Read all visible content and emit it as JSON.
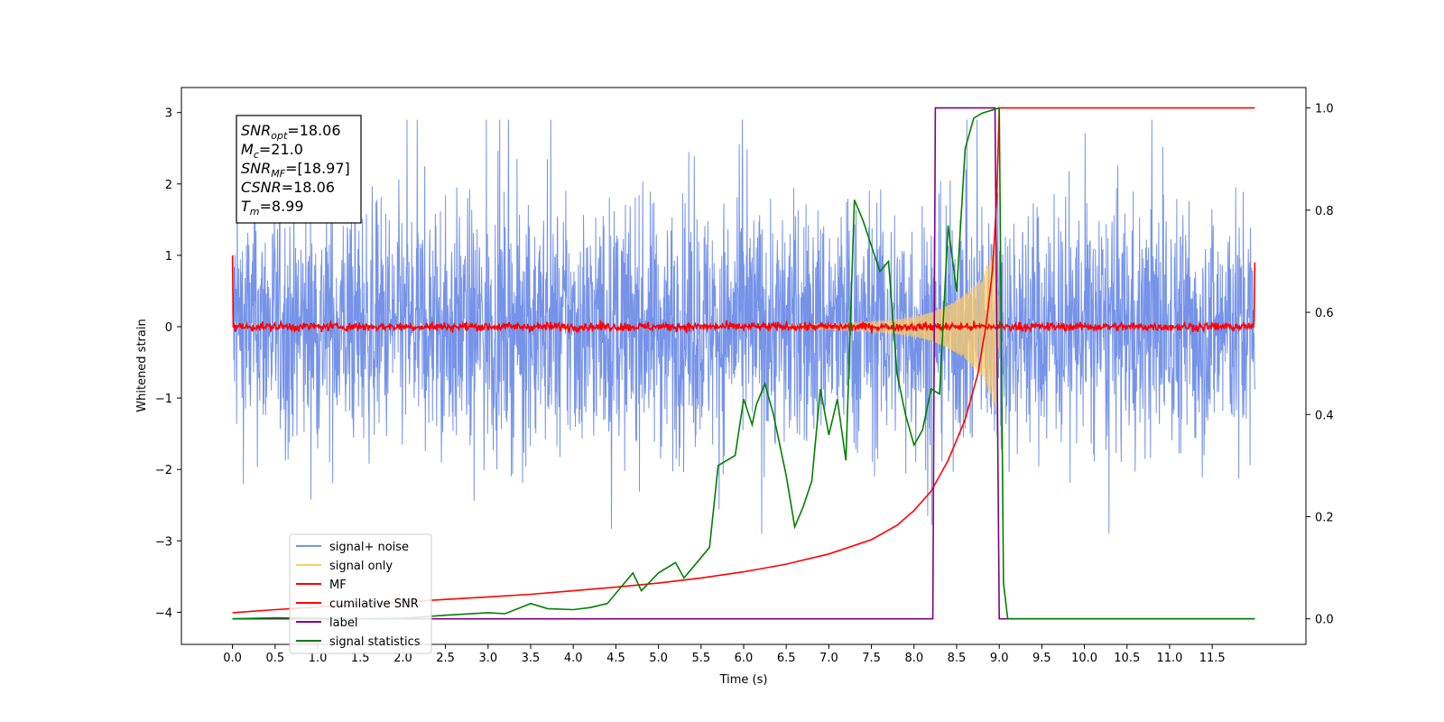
{
  "chart_data": {
    "type": "line",
    "title": "",
    "xlabel": "Time (s)",
    "ylabel": "Whitened strain",
    "xlim": [
      -0.6,
      12.6
    ],
    "ylim": [
      -4.45,
      3.35
    ],
    "y2lim": [
      -0.05,
      1.04
    ],
    "x_ticks": [
      "0.0",
      "0.5",
      "1.0",
      "1.5",
      "2.0",
      "2.5",
      "3.0",
      "3.5",
      "4.0",
      "4.5",
      "5.0",
      "5.5",
      "6.0",
      "6.5",
      "7.0",
      "7.5",
      "8.0",
      "8.5",
      "9.0",
      "9.5",
      "10.0",
      "10.5",
      "11.0",
      "11.5"
    ],
    "y_ticks": [
      "3",
      "2",
      "1",
      "0",
      "−1",
      "−2",
      "−3",
      "−4"
    ],
    "y2_ticks": [
      "1.0",
      "0.8",
      "0.6",
      "0.4",
      "0.2",
      "0.0"
    ],
    "legend_position": "lower-left",
    "grid": false,
    "annotation": {
      "lines": [
        {
          "sym": "SNR",
          "sub": "opt",
          "val": "=18.06"
        },
        {
          "sym": "M",
          "sub": "c",
          "val": "=21.0"
        },
        {
          "sym": "SNR",
          "sub": "MF",
          "val": "=[18.97]"
        },
        {
          "sym": "CSNR",
          "sub": "",
          "val": "=18.06"
        },
        {
          "sym": "T",
          "sub": "m",
          "val": "=8.99"
        }
      ]
    },
    "series": [
      {
        "name": "signal+ noise",
        "axis": "left",
        "color": "#4169e1",
        "opacity": 0.72,
        "description": "whitened noise band, roughly ±1.4 with peaks to about ±2.9",
        "approx_range": [
          -2.9,
          2.9
        ],
        "x_range": [
          0.0,
          12.0
        ]
      },
      {
        "name": "signal only",
        "axis": "left",
        "color": "#ffcc66",
        "envelope": [
          [
            6.5,
            0.02
          ],
          [
            7.0,
            0.04
          ],
          [
            7.5,
            0.07
          ],
          [
            7.8,
            0.1
          ],
          [
            8.0,
            0.14
          ],
          [
            8.2,
            0.2
          ],
          [
            8.4,
            0.3
          ],
          [
            8.6,
            0.45
          ],
          [
            8.8,
            0.7
          ],
          [
            8.9,
            1.0
          ],
          [
            8.97,
            1.25
          ],
          [
            9.0,
            0.0
          ]
        ]
      },
      {
        "name": "MF",
        "axis": "left",
        "color": "#ff0000",
        "description": "matched-filter output fluctuating near 0, spikes to 1.0 at t=0 and 0.9 at t=12",
        "approx_range": [
          -0.1,
          0.1
        ],
        "x_range": [
          0.0,
          12.0
        ]
      },
      {
        "name": "cumilative SNR",
        "axis": "right",
        "color": "#ff0000",
        "points": [
          [
            0.0,
            0.012
          ],
          [
            0.5,
            0.018
          ],
          [
            1.0,
            0.023
          ],
          [
            1.5,
            0.028
          ],
          [
            2.0,
            0.033
          ],
          [
            2.5,
            0.038
          ],
          [
            3.0,
            0.043
          ],
          [
            3.5,
            0.048
          ],
          [
            4.0,
            0.055
          ],
          [
            4.5,
            0.062
          ],
          [
            5.0,
            0.07
          ],
          [
            5.5,
            0.08
          ],
          [
            6.0,
            0.092
          ],
          [
            6.5,
            0.107
          ],
          [
            7.0,
            0.127
          ],
          [
            7.5,
            0.155
          ],
          [
            7.8,
            0.183
          ],
          [
            8.0,
            0.212
          ],
          [
            8.2,
            0.25
          ],
          [
            8.4,
            0.31
          ],
          [
            8.6,
            0.39
          ],
          [
            8.75,
            0.48
          ],
          [
            8.85,
            0.58
          ],
          [
            8.92,
            0.68
          ],
          [
            8.97,
            0.82
          ],
          [
            9.0,
            1.0
          ],
          [
            12.0,
            1.0
          ]
        ]
      },
      {
        "name": "label",
        "axis": "right",
        "color": "#800080",
        "points": [
          [
            0.0,
            0.0
          ],
          [
            8.22,
            0.0
          ],
          [
            8.25,
            1.0
          ],
          [
            8.95,
            1.0
          ],
          [
            9.0,
            0.0
          ],
          [
            12.0,
            0.0
          ]
        ]
      },
      {
        "name": "signal statistics",
        "axis": "right",
        "color": "#008000",
        "points": [
          [
            0.0,
            0.0
          ],
          [
            0.5,
            0.002
          ],
          [
            1.0,
            0.001
          ],
          [
            1.5,
            0.0
          ],
          [
            2.0,
            0.001
          ],
          [
            2.5,
            0.007
          ],
          [
            3.0,
            0.012
          ],
          [
            3.2,
            0.01
          ],
          [
            3.5,
            0.03
          ],
          [
            3.7,
            0.02
          ],
          [
            4.0,
            0.018
          ],
          [
            4.2,
            0.022
          ],
          [
            4.4,
            0.03
          ],
          [
            4.55,
            0.06
          ],
          [
            4.7,
            0.09
          ],
          [
            4.8,
            0.055
          ],
          [
            5.0,
            0.09
          ],
          [
            5.2,
            0.11
          ],
          [
            5.3,
            0.08
          ],
          [
            5.5,
            0.12
          ],
          [
            5.6,
            0.14
          ],
          [
            5.7,
            0.3
          ],
          [
            5.9,
            0.32
          ],
          [
            6.0,
            0.43
          ],
          [
            6.1,
            0.38
          ],
          [
            6.15,
            0.42
          ],
          [
            6.25,
            0.46
          ],
          [
            6.35,
            0.4
          ],
          [
            6.5,
            0.28
          ],
          [
            6.6,
            0.18
          ],
          [
            6.7,
            0.22
          ],
          [
            6.8,
            0.27
          ],
          [
            6.9,
            0.45
          ],
          [
            7.0,
            0.36
          ],
          [
            7.1,
            0.43
          ],
          [
            7.2,
            0.31
          ],
          [
            7.3,
            0.82
          ],
          [
            7.4,
            0.78
          ],
          [
            7.6,
            0.68
          ],
          [
            7.7,
            0.7
          ],
          [
            7.8,
            0.48
          ],
          [
            7.9,
            0.4
          ],
          [
            8.0,
            0.34
          ],
          [
            8.1,
            0.37
          ],
          [
            8.2,
            0.45
          ],
          [
            8.3,
            0.44
          ],
          [
            8.4,
            0.77
          ],
          [
            8.5,
            0.64
          ],
          [
            8.6,
            0.92
          ],
          [
            8.7,
            0.98
          ],
          [
            8.8,
            0.99
          ],
          [
            9.0,
            1.0
          ],
          [
            9.05,
            0.07
          ],
          [
            9.1,
            0.0
          ],
          [
            12.0,
            0.0
          ]
        ]
      }
    ]
  }
}
